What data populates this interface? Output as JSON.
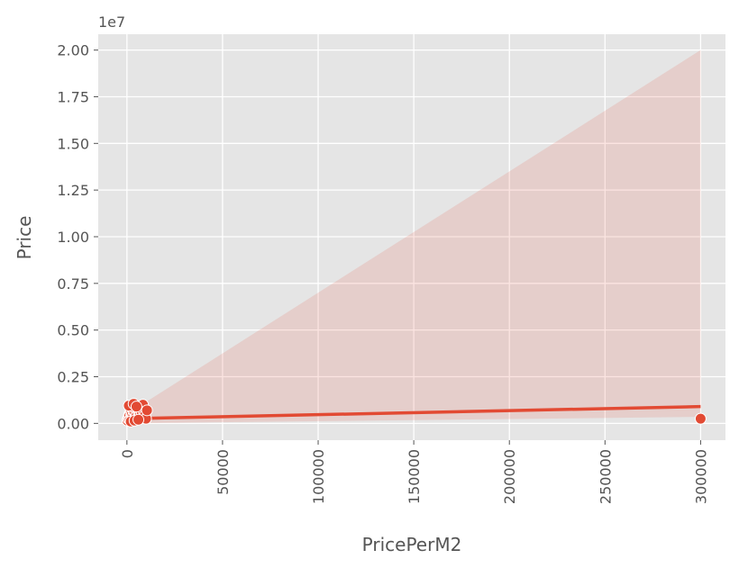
{
  "chart_data": {
    "type": "scatter",
    "title": "",
    "xlabel": "PricePerM2",
    "ylabel": "Price",
    "y_offset_label": "1e7",
    "xlim": [
      -15000,
      313000
    ],
    "ylim": [
      -900000,
      20850000
    ],
    "x_ticks": [
      0,
      50000,
      100000,
      150000,
      200000,
      250000,
      300000
    ],
    "x_tick_labels": [
      "0",
      "50000",
      "100000",
      "150000",
      "200000",
      "250000",
      "300000"
    ],
    "y_ticks": [
      0,
      2500000,
      5000000,
      7500000,
      10000000,
      12500000,
      15000000,
      17500000,
      20000000
    ],
    "y_tick_labels": [
      "0.00",
      "0.25",
      "0.50",
      "0.75",
      "1.00",
      "1.25",
      "1.50",
      "1.75",
      "2.00"
    ],
    "grid": true,
    "colors": {
      "background": "#e5e5e5",
      "grid": "#ffffff",
      "points": "#e24a33",
      "point_edge": "#ffffff",
      "fit_line": "#e24a33",
      "ci_band": "#e24a33"
    },
    "points": [
      {
        "x": 300,
        "y": 150000
      },
      {
        "x": 600,
        "y": 250000
      },
      {
        "x": 900,
        "y": 350000
      },
      {
        "x": 1200,
        "y": 450000
      },
      {
        "x": 1500,
        "y": 200000
      },
      {
        "x": 1800,
        "y": 600000
      },
      {
        "x": 2100,
        "y": 700000
      },
      {
        "x": 2400,
        "y": 300000
      },
      {
        "x": 2700,
        "y": 500000
      },
      {
        "x": 3000,
        "y": 800000
      },
      {
        "x": 3300,
        "y": 400000
      },
      {
        "x": 3600,
        "y": 650000
      },
      {
        "x": 3900,
        "y": 900000
      },
      {
        "x": 4200,
        "y": 550000
      },
      {
        "x": 4500,
        "y": 350000
      },
      {
        "x": 4800,
        "y": 750000
      },
      {
        "x": 5100,
        "y": 450000
      },
      {
        "x": 5400,
        "y": 850000
      },
      {
        "x": 5700,
        "y": 250000
      },
      {
        "x": 6000,
        "y": 600000
      },
      {
        "x": 6300,
        "y": 700000
      },
      {
        "x": 6600,
        "y": 400000
      },
      {
        "x": 6900,
        "y": 500000
      },
      {
        "x": 7200,
        "y": 300000
      },
      {
        "x": 7500,
        "y": 650000
      },
      {
        "x": 7800,
        "y": 550000
      },
      {
        "x": 8100,
        "y": 800000
      },
      {
        "x": 8400,
        "y": 1000000
      },
      {
        "x": 8700,
        "y": 350000
      },
      {
        "x": 9000,
        "y": 600000
      },
      {
        "x": 9500,
        "y": 450000
      },
      {
        "x": 10000,
        "y": 250000
      },
      {
        "x": 10500,
        "y": 700000
      },
      {
        "x": 2000,
        "y": 100000
      },
      {
        "x": 4000,
        "y": 150000
      },
      {
        "x": 6000,
        "y": 200000
      },
      {
        "x": 1000,
        "y": 950000
      },
      {
        "x": 3500,
        "y": 1050000
      },
      {
        "x": 5000,
        "y": 900000
      },
      {
        "x": 300000,
        "y": 250000
      }
    ],
    "fit_line": {
      "x": [
        0,
        300000
      ],
      "y": [
        250000,
        900000
      ]
    },
    "ci_band": {
      "x": [
        0,
        300000
      ],
      "upper": [
        500000,
        20000000
      ],
      "lower": [
        0,
        350000
      ]
    }
  }
}
